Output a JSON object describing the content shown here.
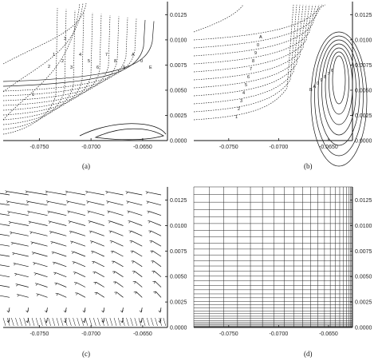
{
  "panels": [
    {
      "id": "a",
      "caption": "(a)",
      "kind": "contour-dotted-solid",
      "contour_labels": [
        "1",
        "2",
        "3",
        "4",
        "5",
        "6",
        "7",
        "8",
        "9",
        "A",
        "0",
        "E",
        "D",
        "C",
        "B"
      ]
    },
    {
      "id": "b",
      "caption": "(b)",
      "kind": "contour-mixed",
      "contour_labels": [
        "1",
        "2",
        "3",
        "4",
        "5",
        "6",
        "7",
        "8",
        "9",
        "0",
        "A",
        "B"
      ]
    },
    {
      "id": "c",
      "caption": "(c)",
      "kind": "vector-field"
    },
    {
      "id": "d",
      "caption": "(d)",
      "kind": "grid"
    }
  ],
  "axes": {
    "x_ticks": [
      "-0.0750",
      "-0.0700",
      "-0.0650"
    ],
    "y_ticks": [
      "0.0000",
      "0.0025",
      "0.0050",
      "0.0075",
      "0.0100",
      "0.0125"
    ]
  },
  "chart_data": [
    {
      "type": "contour",
      "panel": "a",
      "x_ticks": [
        -0.075,
        -0.07,
        -0.065
      ],
      "y_ticks": [
        0,
        0.0025,
        0.005,
        0.0075,
        0.01,
        0.0125
      ]
    },
    {
      "type": "contour",
      "panel": "b",
      "x_ticks": [
        -0.075,
        -0.07,
        -0.065
      ],
      "y_ticks": [
        0,
        0.0025,
        0.005,
        0.0075,
        0.01,
        0.0125
      ]
    },
    {
      "type": "vector",
      "panel": "c",
      "x_ticks": [
        -0.075,
        -0.07,
        -0.065
      ],
      "y_ticks": [
        0,
        0.0025,
        0.005,
        0.0075,
        0.01,
        0.0125
      ]
    },
    {
      "type": "grid",
      "panel": "d",
      "x_ticks": [
        -0.075,
        -0.07,
        -0.065
      ],
      "y_ticks": [
        0,
        0.0025,
        0.005,
        0.0075,
        0.01,
        0.0125
      ]
    }
  ]
}
